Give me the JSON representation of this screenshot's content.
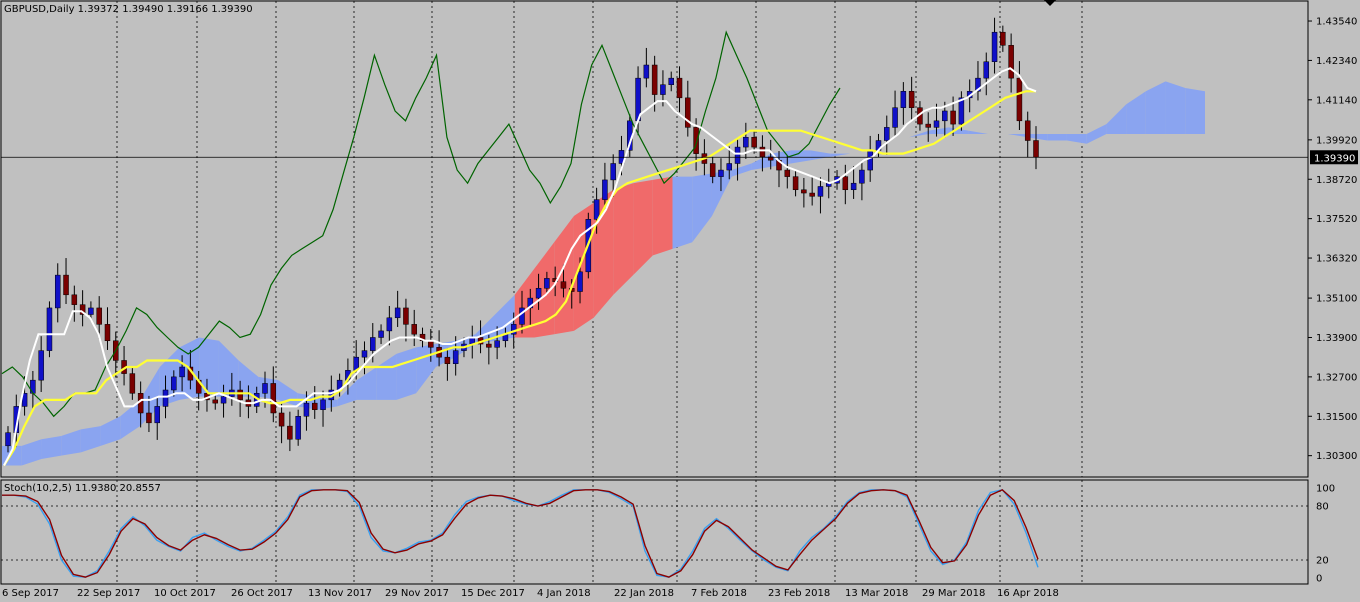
{
  "header": {
    "symbol_info": "GBPUSD,Daily  1.39372 1.39490 1.39166 1.39390"
  },
  "stoch_header": "Stoch(10,2,5) 11.9380 20.8557",
  "current_price_label": "1.39390",
  "colors": {
    "background": "#c0c0c0",
    "bull_candle": "#1010c8",
    "bear_candle": "#7a0000",
    "tenkan": "#ffffff",
    "kijun": "#ffff33",
    "chikou": "#006400",
    "cloud_bull": "#8aa4f0",
    "cloud_bear": "#f06a6a",
    "stoch_main": "#3aa0f0",
    "stoch_signal": "#8b0000"
  },
  "chart_data": [
    {
      "type": "candlestick",
      "title": "GBPUSD,Daily",
      "ohlc_last": {
        "open": 1.39372,
        "high": 1.3949,
        "low": 1.39166,
        "close": 1.3939
      },
      "ylim": [
        1.2965,
        1.4415
      ],
      "y_ticks": [
        "1.43540",
        "1.42340",
        "1.41140",
        "1.39920",
        "1.38720",
        "1.37520",
        "1.36320",
        "1.35100",
        "1.33900",
        "1.32700",
        "1.31500",
        "1.30300"
      ],
      "x_tick_labels": [
        "6 Sep 2017",
        "22 Sep 2017",
        "10 Oct 2017",
        "26 Oct 2017",
        "13 Nov 2017",
        "29 Nov 2017",
        "15 Dec 2017",
        "4 Jan 2018",
        "22 Jan 2018",
        "7 Feb 2018",
        "23 Feb 2018",
        "13 Mar 2018",
        "29 Mar 2018",
        "16 Apr 2018"
      ],
      "current_price": 1.3939,
      "closes": [
        1.31,
        1.318,
        1.322,
        1.326,
        1.335,
        1.348,
        1.358,
        1.352,
        1.349,
        1.346,
        1.348,
        1.343,
        1.338,
        1.332,
        1.328,
        1.322,
        1.316,
        1.313,
        1.318,
        1.323,
        1.327,
        1.33,
        1.326,
        1.322,
        1.32,
        1.319,
        1.321,
        1.323,
        1.32,
        1.318,
        1.322,
        1.325,
        1.316,
        1.312,
        1.308,
        1.315,
        1.319,
        1.317,
        1.32,
        1.323,
        1.326,
        1.329,
        1.333,
        1.335,
        1.339,
        1.341,
        1.345,
        1.348,
        1.343,
        1.34,
        1.338,
        1.336,
        1.333,
        1.331,
        1.335,
        1.337,
        1.339,
        1.337,
        1.336,
        1.338,
        1.34,
        1.343,
        1.348,
        1.351,
        1.354,
        1.357,
        1.356,
        1.354,
        1.353,
        1.359,
        1.375,
        1.381,
        1.387,
        1.392,
        1.396,
        1.405,
        1.418,
        1.422,
        1.413,
        1.416,
        1.418,
        1.412,
        1.403,
        1.395,
        1.392,
        1.388,
        1.39,
        1.392,
        1.397,
        1.4,
        1.397,
        1.394,
        1.393,
        1.39,
        1.388,
        1.384,
        1.383,
        1.382,
        1.385,
        1.386,
        1.388,
        1.384,
        1.386,
        1.39,
        1.396,
        1.399,
        1.403,
        1.409,
        1.414,
        1.409,
        1.404,
        1.403,
        1.405,
        1.408,
        1.404,
        1.412,
        1.414,
        1.418,
        1.423,
        1.432,
        1.428,
        1.418,
        1.405,
        1.399,
        1.3939
      ],
      "tenkan": [
        1.3,
        1.305,
        1.32,
        1.332,
        1.34,
        1.34,
        1.34,
        1.34,
        1.347,
        1.347,
        1.345,
        1.34,
        1.33,
        1.324,
        1.318,
        1.318,
        1.32,
        1.32,
        1.321,
        1.321,
        1.322,
        1.322,
        1.32,
        1.32,
        1.321,
        1.322,
        1.321,
        1.32,
        1.319,
        1.319,
        1.32,
        1.32,
        1.318,
        1.318,
        1.318,
        1.32,
        1.322,
        1.322,
        1.322,
        1.323,
        1.325,
        1.328,
        1.331,
        1.334,
        1.336,
        1.338,
        1.339,
        1.339,
        1.339,
        1.338,
        1.338,
        1.337,
        1.337,
        1.338,
        1.339,
        1.339,
        1.34,
        1.341,
        1.342,
        1.344,
        1.346,
        1.348,
        1.35,
        1.352,
        1.355,
        1.36,
        1.366,
        1.37,
        1.372,
        1.374,
        1.378,
        1.384,
        1.392,
        1.4,
        1.407,
        1.409,
        1.411,
        1.411,
        1.408,
        1.406,
        1.404,
        1.403,
        1.401,
        1.399,
        1.397,
        1.395,
        1.395,
        1.396,
        1.396,
        1.396,
        1.393,
        1.391,
        1.39,
        1.389,
        1.388,
        1.387,
        1.386,
        1.387,
        1.389,
        1.391,
        1.393,
        1.394,
        1.397,
        1.399,
        1.401,
        1.404,
        1.406,
        1.408,
        1.409,
        1.409,
        1.41,
        1.411,
        1.412,
        1.414,
        1.416,
        1.418,
        1.42,
        1.421,
        1.419,
        1.415,
        1.414
      ],
      "kijun": [
        1.3,
        1.305,
        1.312,
        1.318,
        1.32,
        1.32,
        1.32,
        1.322,
        1.322,
        1.322,
        1.326,
        1.328,
        1.33,
        1.33,
        1.332,
        1.332,
        1.332,
        1.332,
        1.33,
        1.326,
        1.322,
        1.322,
        1.322,
        1.322,
        1.322,
        1.32,
        1.319,
        1.319,
        1.32,
        1.32,
        1.32,
        1.321,
        1.321,
        1.323,
        1.328,
        1.33,
        1.33,
        1.33,
        1.33,
        1.331,
        1.332,
        1.333,
        1.334,
        1.335,
        1.336,
        1.336,
        1.337,
        1.338,
        1.339,
        1.34,
        1.341,
        1.342,
        1.343,
        1.344,
        1.346,
        1.35,
        1.358,
        1.366,
        1.374,
        1.38,
        1.384,
        1.386,
        1.387,
        1.388,
        1.389,
        1.39,
        1.391,
        1.392,
        1.393,
        1.394,
        1.396,
        1.398,
        1.4,
        1.402,
        1.402,
        1.402,
        1.402,
        1.402,
        1.402,
        1.401,
        1.4,
        1.399,
        1.398,
        1.397,
        1.396,
        1.396,
        1.395,
        1.395,
        1.395,
        1.396,
        1.397,
        1.398,
        1.4,
        1.402,
        1.404,
        1.406,
        1.408,
        1.41,
        1.412,
        1.413,
        1.414,
        1.414
      ],
      "chikou": [
        1.328,
        1.33,
        1.327,
        1.322,
        1.319,
        1.315,
        1.318,
        1.322,
        1.322,
        1.323,
        1.33,
        1.335,
        1.341,
        1.348,
        1.346,
        1.342,
        1.339,
        1.336,
        1.334,
        1.336,
        1.34,
        1.344,
        1.342,
        1.339,
        1.34,
        1.346,
        1.355,
        1.36,
        1.364,
        1.366,
        1.368,
        1.37,
        1.378,
        1.389,
        1.4,
        1.412,
        1.425,
        1.416,
        1.408,
        1.405,
        1.412,
        1.418,
        1.425,
        1.4,
        1.39,
        1.386,
        1.392,
        1.396,
        1.4,
        1.404,
        1.397,
        1.39,
        1.386,
        1.38,
        1.385,
        1.392,
        1.41,
        1.422,
        1.428,
        1.42,
        1.412,
        1.404,
        1.398,
        1.392,
        1.386,
        1.389,
        1.393,
        1.397,
        1.408,
        1.418,
        1.432,
        1.425,
        1.418,
        1.41,
        1.402,
        1.398,
        1.394,
        1.395,
        1.398,
        1.404,
        1.41,
        1.415
      ],
      "cloud_upper": [
        1.306,
        1.306,
        1.308,
        1.309,
        1.311,
        1.312,
        1.315,
        1.32,
        1.33,
        1.336,
        1.339,
        1.338,
        1.332,
        1.327,
        1.326,
        1.322,
        1.321,
        1.32,
        1.32,
        1.32,
        1.32,
        1.322,
        1.33,
        1.333,
        1.337,
        1.338,
        1.339,
        1.339,
        1.34,
        1.341,
        1.345,
        1.352,
        1.358,
        1.364,
        1.366,
        1.368,
        1.376,
        1.388,
        1.392,
        1.395,
        1.396,
        1.396,
        1.395,
        1.395,
        1.396,
        1.398,
        1.4,
        1.402,
        1.403,
        1.402,
        1.401,
        1.401,
        1.4,
        1.399,
        1.399,
        1.398,
        1.404,
        1.41,
        1.414,
        1.417,
        1.415,
        1.414
      ],
      "cloud_lower": [
        1.3,
        1.3,
        1.302,
        1.303,
        1.304,
        1.306,
        1.308,
        1.312,
        1.318,
        1.32,
        1.321,
        1.321,
        1.321,
        1.321,
        1.32,
        1.318,
        1.317,
        1.318,
        1.326,
        1.33,
        1.334,
        1.336,
        1.337,
        1.338,
        1.34,
        1.346,
        1.352,
        1.36,
        1.368,
        1.376,
        1.38,
        1.384,
        1.386,
        1.387,
        1.388,
        1.388,
        1.389,
        1.39,
        1.39,
        1.391,
        1.392,
        1.393,
        1.394,
        1.395,
        1.396,
        1.398,
        1.4,
        1.401,
        1.401,
        1.401,
        1.401,
        1.401,
        1.401,
        1.401,
        1.401,
        1.401,
        1.401,
        1.401,
        1.401,
        1.401,
        1.401,
        1.401
      ]
    },
    {
      "type": "line",
      "title": "Stoch(10,2,5) 11.9380 20.8557",
      "ylim": [
        0,
        100
      ],
      "y_ticks": [
        "100",
        "80",
        "20",
        "0"
      ],
      "levels": [
        80,
        20
      ],
      "series": [
        {
          "name": "main",
          "values": [
            92,
            92,
            90,
            82,
            60,
            20,
            2,
            1,
            8,
            30,
            55,
            68,
            58,
            42,
            35,
            30,
            45,
            50,
            42,
            35,
            30,
            33,
            42,
            52,
            68,
            92,
            98,
            98,
            98,
            96,
            80,
            45,
            30,
            28,
            33,
            40,
            42,
            50,
            70,
            85,
            90,
            92,
            91,
            86,
            82,
            80,
            85,
            92,
            98,
            98,
            98,
            95,
            88,
            80,
            30,
            3,
            1,
            10,
            30,
            55,
            66,
            55,
            42,
            30,
            20,
            12,
            8,
            30,
            45,
            55,
            68,
            85,
            95,
            98,
            98,
            97,
            90,
            60,
            30,
            15,
            20,
            40,
            75,
            95,
            98,
            82,
            50,
            11.9
          ]
        },
        {
          "name": "signal",
          "values": [
            92,
            92,
            91,
            85,
            65,
            25,
            4,
            1,
            6,
            26,
            52,
            66,
            60,
            45,
            36,
            31,
            42,
            48,
            44,
            37,
            31,
            32,
            40,
            50,
            65,
            90,
            97,
            98,
            98,
            97,
            84,
            50,
            32,
            28,
            31,
            38,
            41,
            48,
            66,
            82,
            89,
            92,
            91,
            88,
            83,
            80,
            83,
            90,
            97,
            98,
            98,
            96,
            90,
            82,
            36,
            5,
            1,
            8,
            26,
            52,
            64,
            57,
            44,
            31,
            22,
            13,
            9,
            26,
            42,
            54,
            66,
            83,
            94,
            97,
            98,
            97,
            92,
            64,
            34,
            17,
            19,
            37,
            70,
            92,
            98,
            86,
            56,
            20.9
          ]
        }
      ]
    }
  ]
}
